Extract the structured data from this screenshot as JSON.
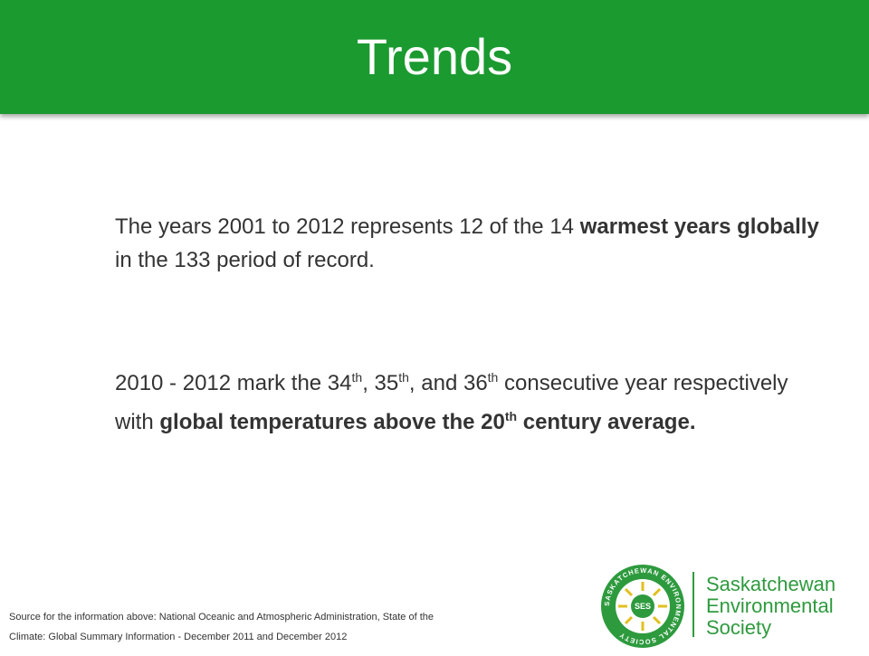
{
  "header": {
    "title": "Trends"
  },
  "body": {
    "paragraphs": [
      [
        {
          "text": "The years 2001 to 2012 represents 12 of the 14 "
        },
        {
          "text": "warmest years globally",
          "bold": true
        },
        {
          "text": " in the 133 period of record."
        }
      ],
      [
        {
          "text": "2010 - 2012 mark the 34"
        },
        {
          "text": "th",
          "sup": true
        },
        {
          "text": ", 35"
        },
        {
          "text": "th",
          "sup": true
        },
        {
          "text": ", and 36"
        },
        {
          "text": "th",
          "sup": true
        },
        {
          "text": " consecutive year respectively with "
        },
        {
          "text": "global temperatures above the 20",
          "bold": true
        },
        {
          "text": "th",
          "bold": true,
          "sup": true
        },
        {
          "text": " century average.",
          "bold": true
        }
      ]
    ]
  },
  "footer": {
    "source": [
      "Source for the information above: National Oceanic and Atmospheric Administration, State of the",
      "Climate: Global Summary Information -  December 2011 and December 2012"
    ]
  },
  "logo": {
    "ring": "SASKATCHEWAN ENVIRONMENTAL SOCIETY",
    "emblem": "SES",
    "wordmark": [
      "Saskatchewan",
      "Environmental",
      "Society"
    ]
  }
}
